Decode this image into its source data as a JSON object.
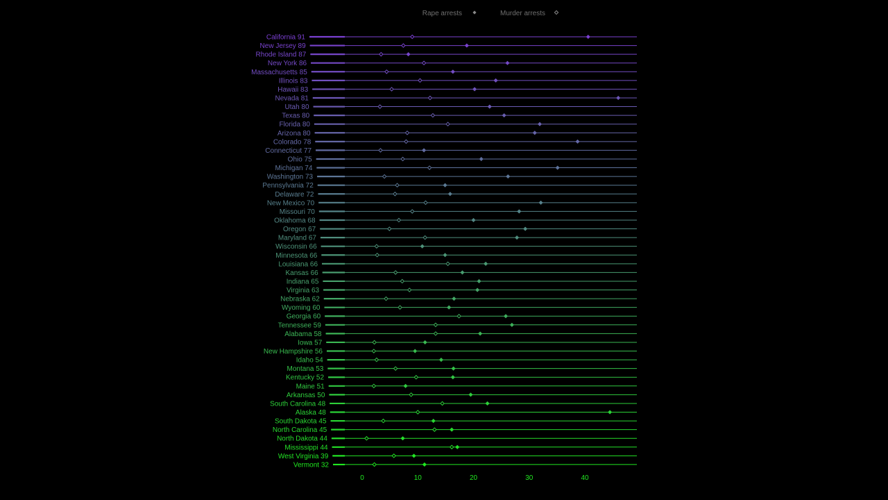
{
  "chart_data": {
    "type": "dot",
    "title": "",
    "xlabel": "",
    "ylabel": "",
    "xlim": [
      -5,
      47
    ],
    "x_ticks": [
      0,
      10,
      20,
      30,
      40
    ],
    "grid": false,
    "legend_position": "top-center",
    "series": [
      {
        "name": "Rape arrests",
        "marker": "filled-diamond"
      },
      {
        "name": "Murder arrests",
        "marker": "open-diamond"
      }
    ],
    "colors": {
      "top": "#7a3fd1",
      "bottom": "#20e820"
    },
    "rows": [
      {
        "state": "California",
        "urban_pop": 91,
        "rape": 40.6,
        "murder": 9.0
      },
      {
        "state": "New Jersey",
        "urban_pop": 89,
        "rape": 18.8,
        "murder": 7.4
      },
      {
        "state": "Rhode Island",
        "urban_pop": 87,
        "rape": 8.3,
        "murder": 3.4
      },
      {
        "state": "New York",
        "urban_pop": 86,
        "rape": 26.1,
        "murder": 11.1
      },
      {
        "state": "Massachusetts",
        "urban_pop": 85,
        "rape": 16.3,
        "murder": 4.4
      },
      {
        "state": "Illinois",
        "urban_pop": 83,
        "rape": 24.0,
        "murder": 10.4
      },
      {
        "state": "Hawaii",
        "urban_pop": 83,
        "rape": 20.2,
        "murder": 5.3
      },
      {
        "state": "Nevada",
        "urban_pop": 81,
        "rape": 46.0,
        "murder": 12.2
      },
      {
        "state": "Utah",
        "urban_pop": 80,
        "rape": 22.9,
        "murder": 3.2
      },
      {
        "state": "Texas",
        "urban_pop": 80,
        "rape": 25.5,
        "murder": 12.7
      },
      {
        "state": "Florida",
        "urban_pop": 80,
        "rape": 31.9,
        "murder": 15.4
      },
      {
        "state": "Arizona",
        "urban_pop": 80,
        "rape": 31.0,
        "murder": 8.1
      },
      {
        "state": "Colorado",
        "urban_pop": 78,
        "rape": 38.7,
        "murder": 7.9
      },
      {
        "state": "Connecticut",
        "urban_pop": 77,
        "rape": 11.1,
        "murder": 3.3
      },
      {
        "state": "Ohio",
        "urban_pop": 75,
        "rape": 21.4,
        "murder": 7.3
      },
      {
        "state": "Michigan",
        "urban_pop": 74,
        "rape": 35.1,
        "murder": 12.1
      },
      {
        "state": "Washington",
        "urban_pop": 73,
        "rape": 26.2,
        "murder": 4.0
      },
      {
        "state": "Pennsylvania",
        "urban_pop": 72,
        "rape": 14.9,
        "murder": 6.3
      },
      {
        "state": "Delaware",
        "urban_pop": 72,
        "rape": 15.8,
        "murder": 5.9
      },
      {
        "state": "New Mexico",
        "urban_pop": 70,
        "rape": 32.1,
        "murder": 11.4
      },
      {
        "state": "Missouri",
        "urban_pop": 70,
        "rape": 28.2,
        "murder": 9.0
      },
      {
        "state": "Oklahoma",
        "urban_pop": 68,
        "rape": 20.0,
        "murder": 6.6
      },
      {
        "state": "Oregon",
        "urban_pop": 67,
        "rape": 29.3,
        "murder": 4.9
      },
      {
        "state": "Maryland",
        "urban_pop": 67,
        "rape": 27.8,
        "murder": 11.3
      },
      {
        "state": "Wisconsin",
        "urban_pop": 66,
        "rape": 10.8,
        "murder": 2.6
      },
      {
        "state": "Minnesota",
        "urban_pop": 66,
        "rape": 14.9,
        "murder": 2.7
      },
      {
        "state": "Louisiana",
        "urban_pop": 66,
        "rape": 22.2,
        "murder": 15.4
      },
      {
        "state": "Kansas",
        "urban_pop": 66,
        "rape": 18.0,
        "murder": 6.0
      },
      {
        "state": "Indiana",
        "urban_pop": 65,
        "rape": 21.0,
        "murder": 7.2
      },
      {
        "state": "Virginia",
        "urban_pop": 63,
        "rape": 20.7,
        "murder": 8.5
      },
      {
        "state": "Nebraska",
        "urban_pop": 62,
        "rape": 16.5,
        "murder": 4.3
      },
      {
        "state": "Wyoming",
        "urban_pop": 60,
        "rape": 15.6,
        "murder": 6.8
      },
      {
        "state": "Georgia",
        "urban_pop": 60,
        "rape": 25.8,
        "murder": 17.4
      },
      {
        "state": "Tennessee",
        "urban_pop": 59,
        "rape": 26.9,
        "murder": 13.2
      },
      {
        "state": "Alabama",
        "urban_pop": 58,
        "rape": 21.2,
        "murder": 13.2
      },
      {
        "state": "Iowa",
        "urban_pop": 57,
        "rape": 11.3,
        "murder": 2.2
      },
      {
        "state": "New Hampshire",
        "urban_pop": 56,
        "rape": 9.5,
        "murder": 2.1
      },
      {
        "state": "Idaho",
        "urban_pop": 54,
        "rape": 14.2,
        "murder": 2.6
      },
      {
        "state": "Montana",
        "urban_pop": 53,
        "rape": 16.4,
        "murder": 6.0
      },
      {
        "state": "Kentucky",
        "urban_pop": 52,
        "rape": 16.3,
        "murder": 9.7
      },
      {
        "state": "Maine",
        "urban_pop": 51,
        "rape": 7.8,
        "murder": 2.1
      },
      {
        "state": "Arkansas",
        "urban_pop": 50,
        "rape": 19.5,
        "murder": 8.8
      },
      {
        "state": "South Carolina",
        "urban_pop": 48,
        "rape": 22.5,
        "murder": 14.4
      },
      {
        "state": "Alaska",
        "urban_pop": 48,
        "rape": 44.5,
        "murder": 10.0
      },
      {
        "state": "South Dakota",
        "urban_pop": 45,
        "rape": 12.8,
        "murder": 3.8
      },
      {
        "state": "North Carolina",
        "urban_pop": 45,
        "rape": 16.1,
        "murder": 13.0
      },
      {
        "state": "North Dakota",
        "urban_pop": 44,
        "rape": 7.3,
        "murder": 0.8
      },
      {
        "state": "Mississippi",
        "urban_pop": 44,
        "rape": 17.1,
        "murder": 16.1
      },
      {
        "state": "West Virginia",
        "urban_pop": 39,
        "rape": 9.3,
        "murder": 5.7
      },
      {
        "state": "Vermont",
        "urban_pop": 32,
        "rape": 11.2,
        "murder": 2.2
      }
    ]
  }
}
